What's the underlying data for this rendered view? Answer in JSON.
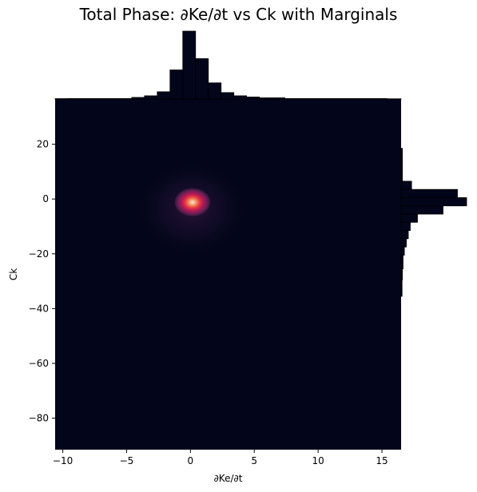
{
  "chart_data": {
    "title": "Total Phase: ∂Ke/∂t vs Ck with Marginals",
    "type": "heatmap",
    "subtype": "2D density (KDE) with marginal histograms",
    "xlabel": "∂Ke/∂t",
    "ylabel": "Ck",
    "xlim": [
      -10.6,
      16.5
    ],
    "ylim": [
      -91.5,
      36.5
    ],
    "x_ticks": [
      -10,
      -5,
      0,
      5,
      10,
      15
    ],
    "y_ticks": [
      20,
      0,
      -20,
      -40,
      -60,
      -80
    ],
    "x_tick_labels": [
      "−10",
      "−5",
      "0",
      "5",
      "10",
      "15"
    ],
    "y_tick_labels": [
      "20",
      "0",
      "−20",
      "−40",
      "−60",
      "−80"
    ],
    "density_peak": {
      "x": 0.1,
      "y": -1.2
    },
    "colormap": "rocket",
    "background_color": "#03051a",
    "bar_color": "#03051a",
    "marginal_x": {
      "bins": [
        {
          "x0": -10.6,
          "x1": -9.6,
          "count": 0.5
        },
        {
          "x0": -9.6,
          "x1": -4.6,
          "count": 0.6
        },
        {
          "x0": -4.6,
          "x1": -3.6,
          "count": 2
        },
        {
          "x0": -3.6,
          "x1": -2.6,
          "count": 4
        },
        {
          "x0": -2.6,
          "x1": -1.6,
          "count": 9
        },
        {
          "x0": -1.6,
          "x1": -0.6,
          "count": 36
        },
        {
          "x0": -0.6,
          "x1": 0.4,
          "count": 84
        },
        {
          "x0": 0.4,
          "x1": 1.4,
          "count": 50
        },
        {
          "x0": 1.4,
          "x1": 2.4,
          "count": 20
        },
        {
          "x0": 2.4,
          "x1": 3.4,
          "count": 8
        },
        {
          "x0": 3.4,
          "x1": 4.4,
          "count": 4
        },
        {
          "x0": 4.4,
          "x1": 5.4,
          "count": 2.5
        },
        {
          "x0": 5.4,
          "x1": 7.4,
          "count": 1.5
        },
        {
          "x0": 7.4,
          "x1": 15.4,
          "count": 0.6
        },
        {
          "x0": 15.4,
          "x1": 16.5,
          "count": 0.3
        }
      ]
    },
    "marginal_y": {
      "bins": [
        {
          "y0": 15.5,
          "y1": 18.5,
          "count": 2
        },
        {
          "y0": 12.5,
          "y1": 15.5,
          "count": 2
        },
        {
          "y0": 9.5,
          "y1": 12.5,
          "count": 2
        },
        {
          "y0": 6.5,
          "y1": 9.5,
          "count": 2
        },
        {
          "y0": 3.5,
          "y1": 6.5,
          "count": 16
        },
        {
          "y0": 0.5,
          "y1": 3.5,
          "count": 86
        },
        {
          "y0": -2.5,
          "y1": 0.5,
          "count": 100
        },
        {
          "y0": -5.5,
          "y1": -2.5,
          "count": 64
        },
        {
          "y0": -8.5,
          "y1": -5.5,
          "count": 25
        },
        {
          "y0": -11.5,
          "y1": -8.5,
          "count": 14
        },
        {
          "y0": -14.5,
          "y1": -11.5,
          "count": 11
        },
        {
          "y0": -17.5,
          "y1": -14.5,
          "count": 8
        },
        {
          "y0": -20.5,
          "y1": -17.5,
          "count": 5
        },
        {
          "y0": -25.5,
          "y1": -20.5,
          "count": 3
        },
        {
          "y0": -29.5,
          "y1": -25.5,
          "count": 2
        },
        {
          "y0": -35.5,
          "y1": -29.5,
          "count": 1.5
        }
      ]
    }
  }
}
